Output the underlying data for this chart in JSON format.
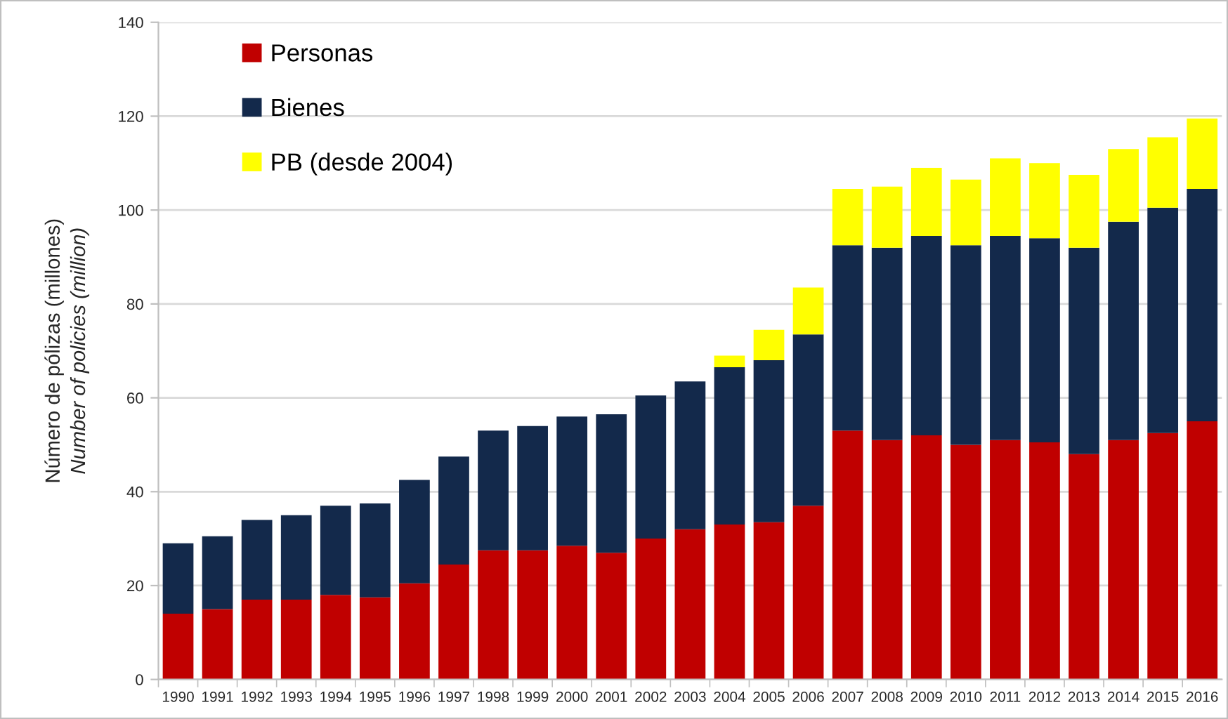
{
  "chart_data": {
    "type": "bar",
    "stacked": true,
    "ylabel": "Número de pólizas (millones)\nNumber of policies (million)",
    "categories": [
      "1990",
      "1991",
      "1992",
      "1993",
      "1994",
      "1995",
      "1996",
      "1997",
      "1998",
      "1999",
      "2000",
      "2001",
      "2002",
      "2003",
      "2004",
      "2005",
      "2006",
      "2007",
      "2008",
      "2009",
      "2010",
      "2011",
      "2012",
      "2013",
      "2014",
      "2015",
      "2016"
    ],
    "series": [
      {
        "name": "Personas",
        "color": "#c00000",
        "values": [
          14,
          15,
          17,
          17,
          18,
          17.5,
          20.5,
          24.5,
          27.5,
          27.5,
          28.5,
          27,
          30,
          32,
          33,
          33.5,
          37,
          53,
          51,
          52,
          50,
          51,
          50.5,
          48,
          51,
          52.5,
          55
        ]
      },
      {
        "name": "Bienes",
        "color": "#13294b",
        "values": [
          15,
          15.5,
          17,
          18,
          19,
          20,
          22,
          23,
          25.5,
          26.5,
          27.5,
          29.5,
          30.5,
          31.5,
          33.5,
          34.5,
          36.5,
          39.5,
          41,
          42.5,
          42.5,
          43.5,
          43.5,
          44,
          46.5,
          48,
          49.5
        ]
      },
      {
        "name": "PB (desde 2004)",
        "color": "#ffff00",
        "values": [
          null,
          null,
          null,
          null,
          null,
          null,
          null,
          null,
          null,
          null,
          null,
          null,
          null,
          null,
          2.5,
          6.5,
          10,
          12,
          13,
          14.5,
          14,
          16.5,
          16,
          15.5,
          15.5,
          15,
          15
        ]
      }
    ],
    "ylim": [
      0,
      140
    ],
    "yticks": [
      0,
      20,
      40,
      60,
      80,
      100,
      120,
      140
    ],
    "grid": "y",
    "legend": "top left"
  }
}
